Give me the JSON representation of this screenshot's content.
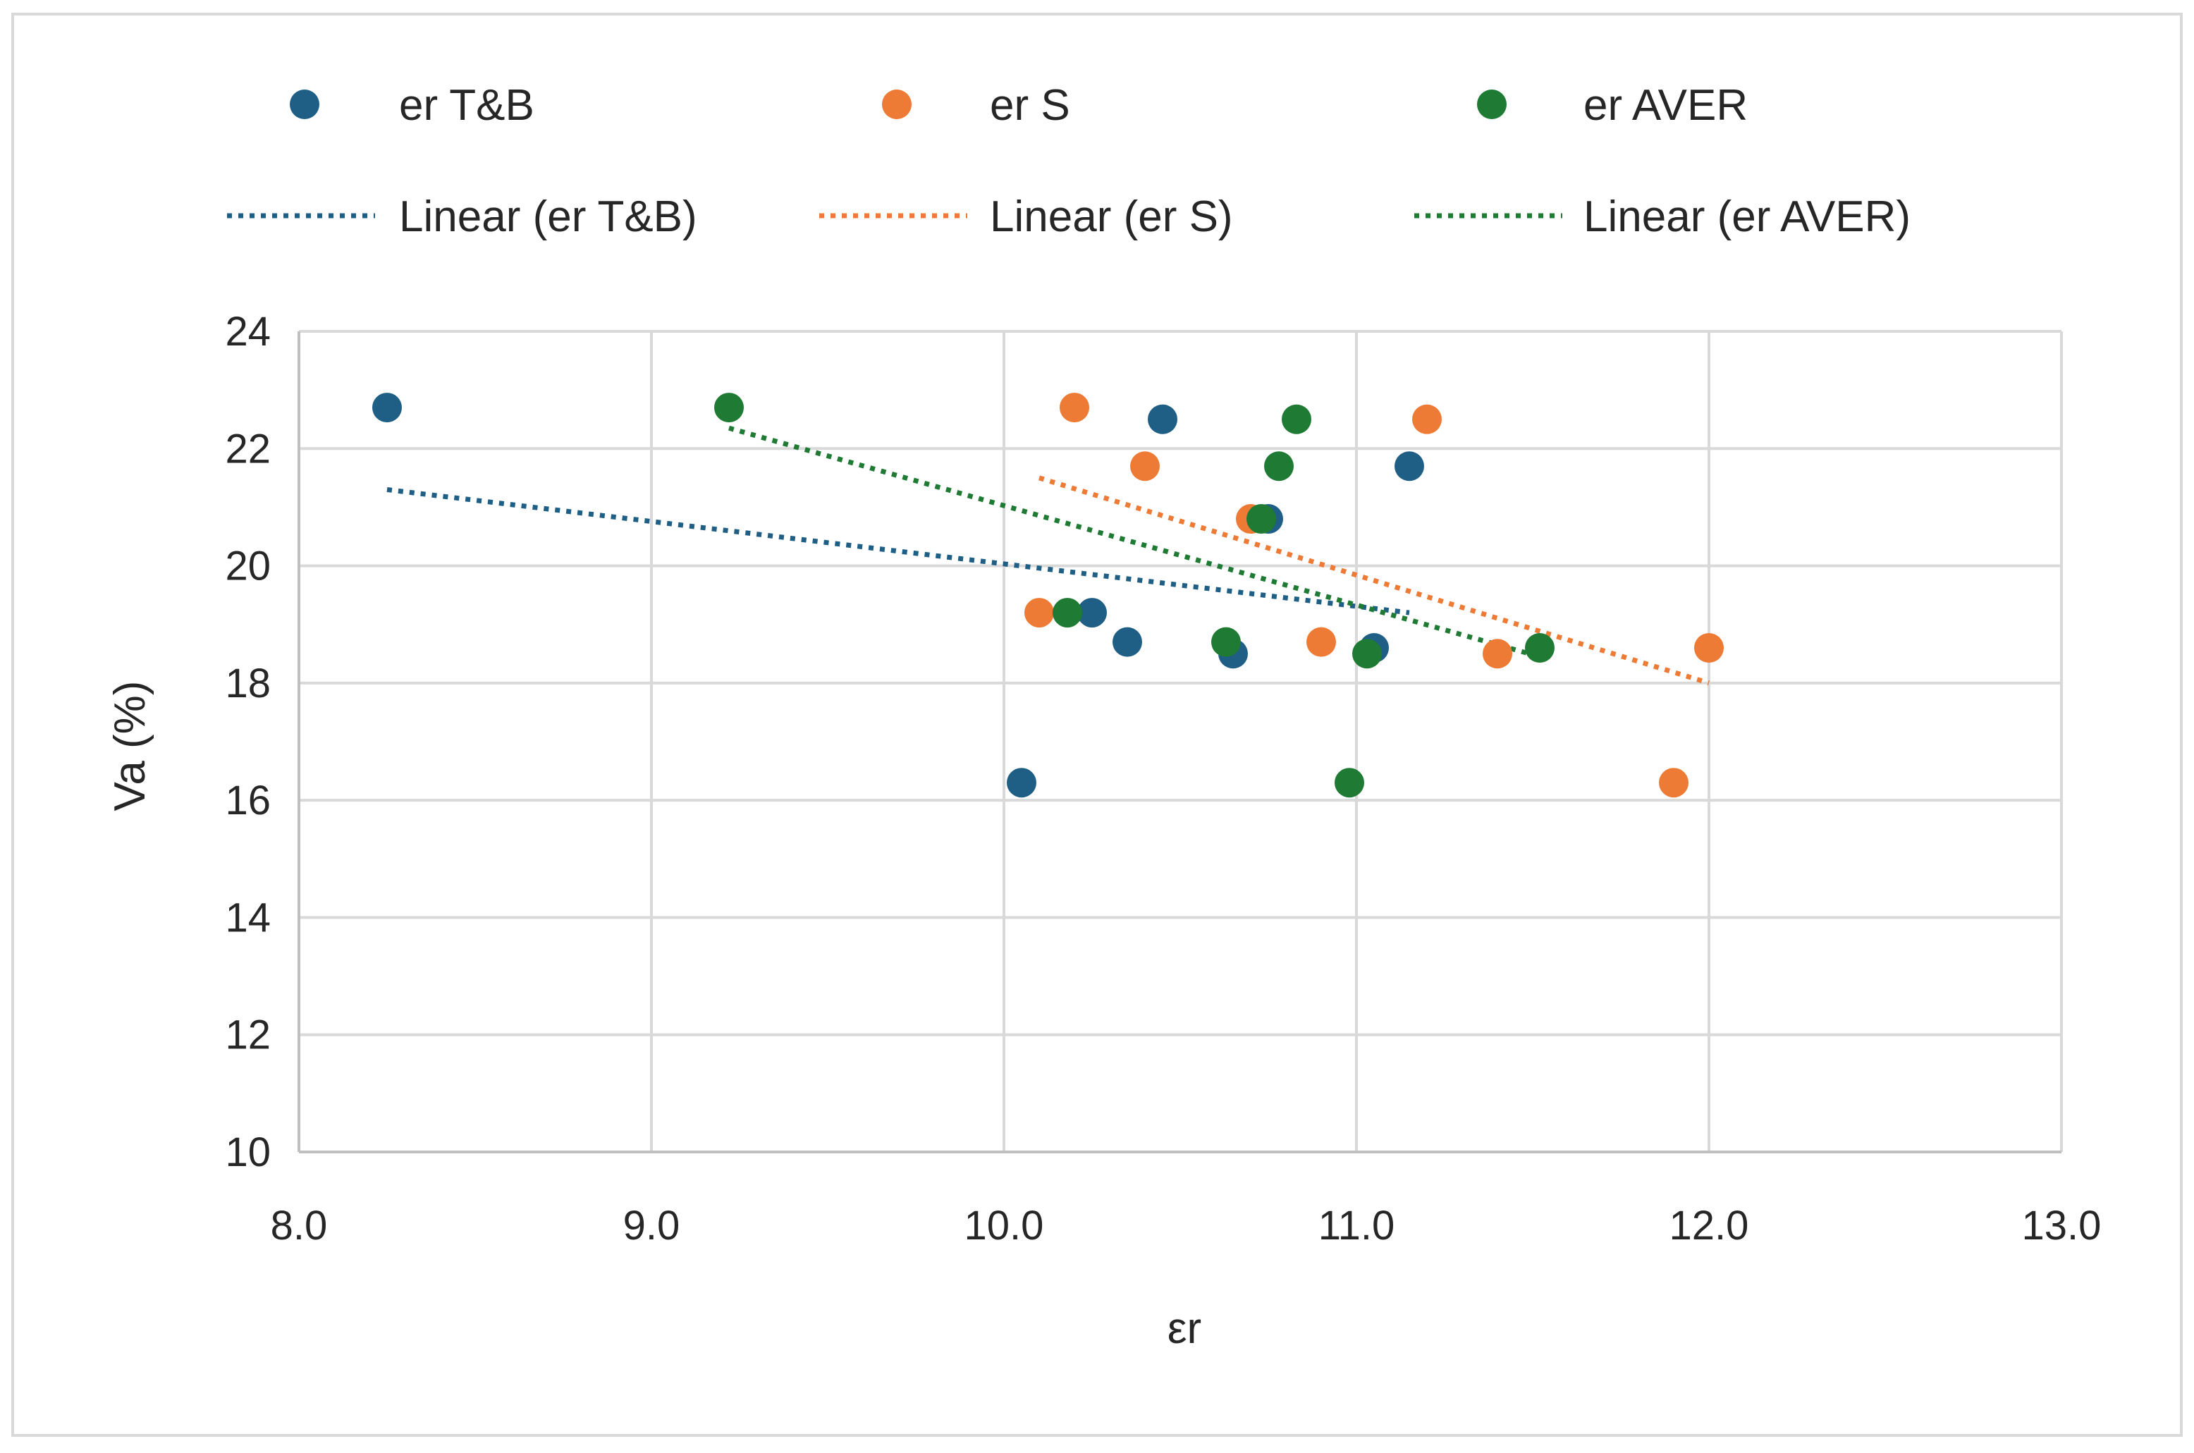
{
  "chart_data": {
    "type": "scatter",
    "title": "",
    "xlabel": "εr",
    "ylabel": "Va (%)",
    "xlim": [
      8.0,
      13.0
    ],
    "ylim": [
      10,
      24
    ],
    "xticks": [
      8.0,
      9.0,
      10.0,
      11.0,
      12.0,
      13.0
    ],
    "xtick_labels": [
      "8.0",
      "9.0",
      "10.0",
      "11.0",
      "12.0",
      "13.0"
    ],
    "yticks": [
      10,
      12,
      14,
      16,
      18,
      20,
      22,
      24
    ],
    "ytick_labels": [
      "10",
      "12",
      "14",
      "16",
      "18",
      "20",
      "22",
      "24"
    ],
    "grid": true,
    "legend_position": "top",
    "series": [
      {
        "name": "er T&B",
        "trendline_label": "Linear (er T&B)",
        "color": "#1f5f86",
        "points": [
          [
            8.25,
            22.7
          ],
          [
            10.45,
            22.5
          ],
          [
            11.15,
            21.7
          ],
          [
            10.75,
            20.8
          ],
          [
            10.25,
            19.2
          ],
          [
            10.35,
            18.7
          ],
          [
            10.65,
            18.5
          ],
          [
            11.05,
            18.6
          ],
          [
            10.05,
            16.3
          ]
        ],
        "trend": [
          [
            8.25,
            21.3
          ],
          [
            11.15,
            19.2
          ]
        ]
      },
      {
        "name": "er S",
        "trendline_label": "Linear (er S)",
        "color": "#ee7b35",
        "points": [
          [
            10.2,
            22.7
          ],
          [
            11.2,
            22.5
          ],
          [
            10.4,
            21.7
          ],
          [
            10.7,
            20.8
          ],
          [
            10.1,
            19.2
          ],
          [
            10.9,
            18.7
          ],
          [
            11.4,
            18.5
          ],
          [
            12.0,
            18.6
          ],
          [
            11.9,
            16.3
          ]
        ],
        "trend": [
          [
            10.1,
            21.5
          ],
          [
            12.0,
            18.0
          ]
        ]
      },
      {
        "name": "er AVER",
        "trendline_label": "Linear (er AVER)",
        "color": "#1f7a34",
        "points": [
          [
            9.22,
            22.7
          ],
          [
            10.83,
            22.5
          ],
          [
            10.78,
            21.7
          ],
          [
            10.73,
            20.8
          ],
          [
            10.18,
            19.2
          ],
          [
            10.63,
            18.7
          ],
          [
            11.03,
            18.5
          ],
          [
            11.52,
            18.6
          ],
          [
            10.98,
            16.3
          ]
        ],
        "trend": [
          [
            9.22,
            22.35
          ],
          [
            11.52,
            18.45
          ]
        ]
      }
    ]
  }
}
